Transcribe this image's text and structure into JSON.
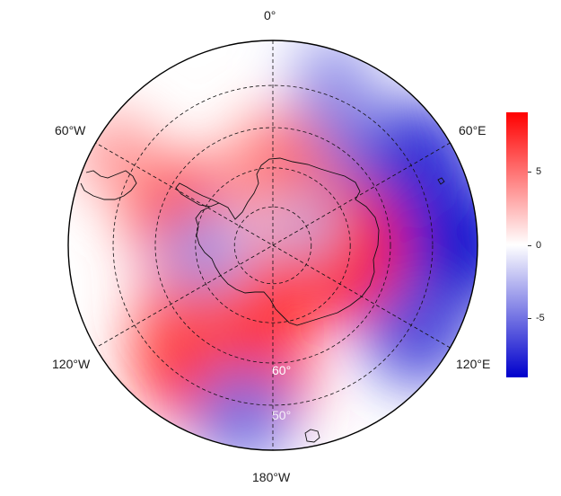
{
  "map": {
    "projection": "south-polar-stereographic",
    "longitude_labels": {
      "top": "0°",
      "upper_left": "60°W",
      "upper_right": "60°E",
      "lower_left": "120°W",
      "lower_right": "120°E",
      "bottom": "180°W"
    },
    "latitude_labels": {
      "inner": "60°",
      "outer": "50°"
    },
    "anomaly_field": [
      {
        "lat": -47,
        "lon": 90,
        "value": -7
      },
      {
        "lat": -50,
        "lon": 60,
        "value": -6
      },
      {
        "lat": -48,
        "lon": 120,
        "value": -5
      },
      {
        "lat": -45,
        "lon": 20,
        "value": -3
      },
      {
        "lat": -60,
        "lon": 30,
        "value": -4
      },
      {
        "lat": -55,
        "lon": -165,
        "value": 7
      },
      {
        "lat": -60,
        "lon": -150,
        "value": 8
      },
      {
        "lat": -65,
        "lon": -130,
        "value": 5
      },
      {
        "lat": -65,
        "lon": -70,
        "value": 5
      },
      {
        "lat": -68,
        "lon": 5,
        "value": 4
      },
      {
        "lat": -75,
        "lon": 95,
        "value": 7
      },
      {
        "lat": -47,
        "lon": -170,
        "value": -4
      },
      {
        "lat": -72,
        "lon": -95,
        "value": -3
      },
      {
        "lat": -80,
        "lon": 60,
        "value": -2
      },
      {
        "lat": -45,
        "lon": -60,
        "value": 3
      }
    ]
  },
  "legend": {
    "ticks": [
      "5",
      "0",
      "-5"
    ],
    "range": [
      -9,
      9
    ],
    "colors": {
      "max": "#ff0000",
      "mid": "#ffffff",
      "min": "#0000cc"
    }
  }
}
